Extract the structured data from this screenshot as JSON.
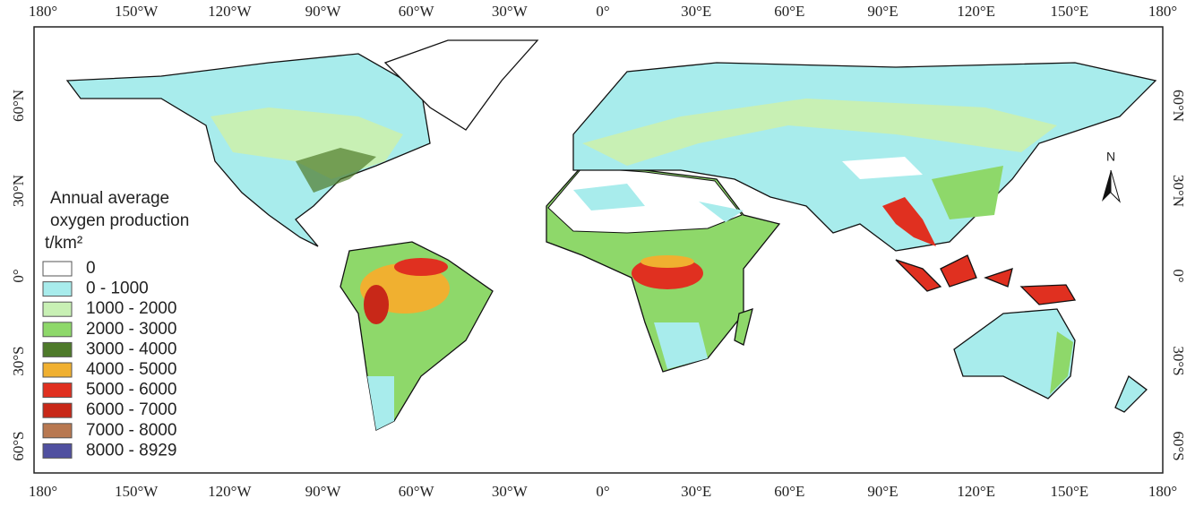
{
  "map": {
    "longitude_labels": [
      "180°",
      "150°W",
      "120°W",
      "90°W",
      "60°W",
      "30°W",
      "0°",
      "30°E",
      "60°E",
      "90°E",
      "120°E",
      "150°E",
      "180°"
    ],
    "latitude_labels": [
      "60°N",
      "30°N",
      "0°",
      "30°S",
      "60°S"
    ],
    "legend": {
      "title": [
        "Annual average",
        "oxygen production"
      ],
      "unit": "t/km²",
      "items": [
        {
          "label": "0",
          "color": "#ffffff"
        },
        {
          "label": "0 - 1000",
          "color": "#a8ecec"
        },
        {
          "label": "1000 - 2000",
          "color": "#c8f0b4"
        },
        {
          "label": "2000 - 3000",
          "color": "#8ed86a"
        },
        {
          "label": "3000 - 4000",
          "color": "#4e7a2a"
        },
        {
          "label": "4000 - 5000",
          "color": "#f0b030"
        },
        {
          "label": "5000 - 6000",
          "color": "#e03020"
        },
        {
          "label": "6000 - 7000",
          "color": "#c82818"
        },
        {
          "label": "7000 - 8000",
          "color": "#b87850"
        },
        {
          "label": "8000 - 8929",
          "color": "#5050a0"
        }
      ]
    },
    "north_label": "N"
  }
}
